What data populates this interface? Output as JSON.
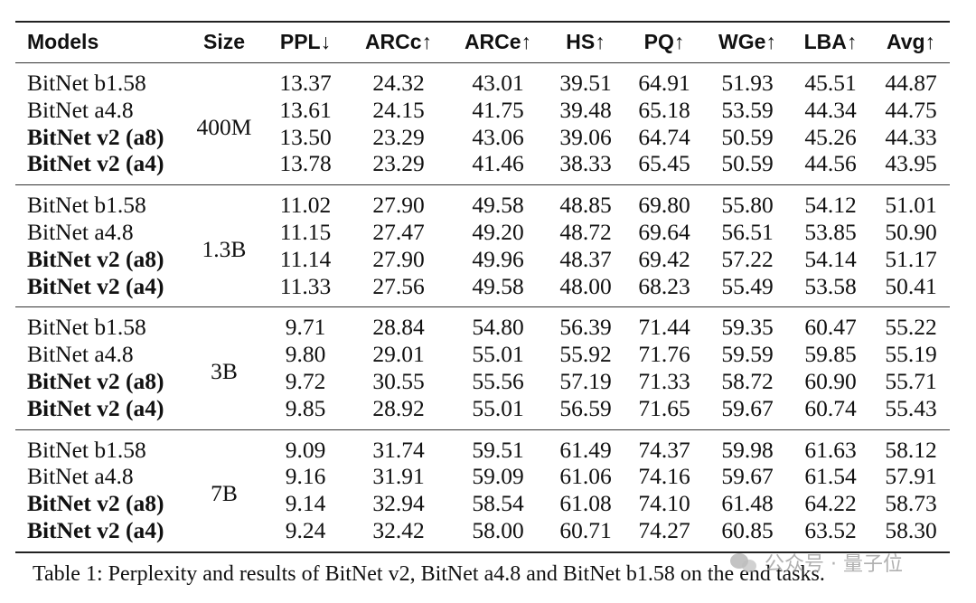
{
  "table": {
    "headers": [
      "Models",
      "Size",
      "PPL↓",
      "ARCc↑",
      "ARCe↑",
      "HS↑",
      "PQ↑",
      "WGe↑",
      "LBA↑",
      "Avg↑"
    ],
    "groups": [
      {
        "size": "400M",
        "rows": [
          {
            "model": "BitNet b1.58",
            "bold": false,
            "values": [
              "13.37",
              "24.32",
              "43.01",
              "39.51",
              "64.91",
              "51.93",
              "45.51",
              "44.87"
            ]
          },
          {
            "model": "BitNet a4.8",
            "bold": false,
            "values": [
              "13.61",
              "24.15",
              "41.75",
              "39.48",
              "65.18",
              "53.59",
              "44.34",
              "44.75"
            ]
          },
          {
            "model": "BitNet v2 (a8)",
            "bold": true,
            "values": [
              "13.50",
              "23.29",
              "43.06",
              "39.06",
              "64.74",
              "50.59",
              "45.26",
              "44.33"
            ]
          },
          {
            "model": "BitNet v2 (a4)",
            "bold": true,
            "values": [
              "13.78",
              "23.29",
              "41.46",
              "38.33",
              "65.45",
              "50.59",
              "44.56",
              "43.95"
            ]
          }
        ]
      },
      {
        "size": "1.3B",
        "rows": [
          {
            "model": "BitNet b1.58",
            "bold": false,
            "values": [
              "11.02",
              "27.90",
              "49.58",
              "48.85",
              "69.80",
              "55.80",
              "54.12",
              "51.01"
            ]
          },
          {
            "model": "BitNet a4.8",
            "bold": false,
            "values": [
              "11.15",
              "27.47",
              "49.20",
              "48.72",
              "69.64",
              "56.51",
              "53.85",
              "50.90"
            ]
          },
          {
            "model": "BitNet v2 (a8)",
            "bold": true,
            "values": [
              "11.14",
              "27.90",
              "49.96",
              "48.37",
              "69.42",
              "57.22",
              "54.14",
              "51.17"
            ]
          },
          {
            "model": "BitNet v2 (a4)",
            "bold": true,
            "values": [
              "11.33",
              "27.56",
              "49.58",
              "48.00",
              "68.23",
              "55.49",
              "53.58",
              "50.41"
            ]
          }
        ]
      },
      {
        "size": "3B",
        "rows": [
          {
            "model": "BitNet b1.58",
            "bold": false,
            "values": [
              "9.71",
              "28.84",
              "54.80",
              "56.39",
              "71.44",
              "59.35",
              "60.47",
              "55.22"
            ]
          },
          {
            "model": "BitNet a4.8",
            "bold": false,
            "values": [
              "9.80",
              "29.01",
              "55.01",
              "55.92",
              "71.76",
              "59.59",
              "59.85",
              "55.19"
            ]
          },
          {
            "model": "BitNet v2 (a8)",
            "bold": true,
            "values": [
              "9.72",
              "30.55",
              "55.56",
              "57.19",
              "71.33",
              "58.72",
              "60.90",
              "55.71"
            ]
          },
          {
            "model": "BitNet v2 (a4)",
            "bold": true,
            "values": [
              "9.85",
              "28.92",
              "55.01",
              "56.59",
              "71.65",
              "59.67",
              "60.74",
              "55.43"
            ]
          }
        ]
      },
      {
        "size": "7B",
        "rows": [
          {
            "model": "BitNet b1.58",
            "bold": false,
            "values": [
              "9.09",
              "31.74",
              "59.51",
              "61.49",
              "74.37",
              "59.98",
              "61.63",
              "58.12"
            ]
          },
          {
            "model": "BitNet a4.8",
            "bold": false,
            "values": [
              "9.16",
              "31.91",
              "59.09",
              "61.06",
              "74.16",
              "59.67",
              "61.54",
              "57.91"
            ]
          },
          {
            "model": "BitNet v2 (a8)",
            "bold": true,
            "values": [
              "9.14",
              "32.94",
              "58.54",
              "61.08",
              "74.10",
              "61.48",
              "64.22",
              "58.73"
            ]
          },
          {
            "model": "BitNet v2 (a4)",
            "bold": true,
            "values": [
              "9.24",
              "32.42",
              "58.00",
              "60.71",
              "74.27",
              "60.85",
              "63.52",
              "58.30"
            ]
          }
        ]
      }
    ]
  },
  "caption": "Table 1: Perplexity and results of BitNet v2, BitNet a4.8 and BitNet b1.58 on the end tasks.",
  "watermark": {
    "text": "公众号 · 量子位",
    "icon": "wechat-icon"
  }
}
